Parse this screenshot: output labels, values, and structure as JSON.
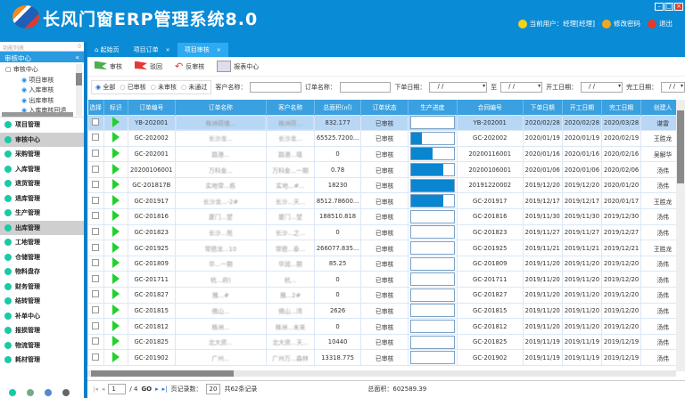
{
  "app": {
    "title": "长风门窗ERP管理系统8.0",
    "user": "当前用户：经理[经理]",
    "change_password": "修改密码",
    "logout": "退出"
  },
  "sidebar": {
    "search_placeholder": "功能列表",
    "search_count": "0",
    "section": "审核中心",
    "tree_root": "审核中心",
    "tree_items": [
      "项目审核",
      "入库审核",
      "出库审核",
      "入库审核回退"
    ],
    "menu": [
      "项目管理",
      "审核中心",
      "采购管理",
      "入库管理",
      "退货管理",
      "退库管理",
      "生产管理",
      "出库管理",
      "工地管理",
      "仓储管理",
      "物料盘存",
      "财务管理",
      "结转管理",
      "补单中心",
      "报损管理",
      "物流管理",
      "耗材管理"
    ],
    "selected": [
      "审核中心",
      "出库管理"
    ]
  },
  "tabs": [
    {
      "label": "起始页"
    },
    {
      "label": "项目订单"
    },
    {
      "label": "项目审核",
      "active": true
    }
  ],
  "toolbar": {
    "approve": "审核",
    "reject": "驳回",
    "unapprove": "反审核",
    "report": "报表中心"
  },
  "filter": {
    "radios": [
      "全部",
      "已审核",
      "未审核",
      "未通过"
    ],
    "selected": "全部",
    "customer_label": "客户名称：",
    "order_label": "订单名称：",
    "order_date_label": "下单日期：",
    "to_label": "至",
    "start_date_label": "开工日期：",
    "finish_date_label": "完工日期：",
    "date_placeholder": "/ /"
  },
  "table": {
    "columns": [
      "选择",
      "标识",
      "订单编号",
      "订单名称",
      "客户名称",
      "总面积(㎡)",
      "订单状态",
      "生产进度",
      "合同编号",
      "下单日期",
      "开工日期",
      "完工日期",
      "创建人"
    ],
    "rows": [
      [
        "YB-202001",
        "株洲荷塘...",
        "株洲荷...",
        "832.177",
        "已审核",
        0,
        "YB-202001",
        "2020/02/28",
        "2020/02/28",
        "2020/03/28",
        "谌雷"
      ],
      [
        "GC-202002",
        "长沙龙...",
        "长沙龙...",
        "65525.7200...",
        "已审核",
        0.25,
        "GC-202002",
        "2020/01/19",
        "2020/01/19",
        "2020/02/19",
        "王胜龙"
      ],
      [
        "GC-202001",
        "路港...",
        "路港...墙",
        "0",
        "已审核",
        0.5,
        "20200116001",
        "2020/01/16",
        "2020/01/16",
        "2020/02/16",
        "吴解华"
      ],
      [
        "20200106001",
        "万科金...",
        "万科金...一期",
        "0.78",
        "已审核",
        0.75,
        "20200106001",
        "2020/01/06",
        "2020/01/06",
        "2020/02/06",
        "汤伟"
      ],
      [
        "GC-201817B",
        "实地常...栋",
        "实地...#...",
        "18230",
        "已审核",
        1,
        "20191220002",
        "2019/12/20",
        "2019/12/20",
        "2020/01/20",
        "汤伟"
      ],
      [
        "GC-201917",
        "长沙龙...-2#",
        "长沙...天...",
        "8512.78600...",
        "已审核",
        0.75,
        "GC-201917",
        "2019/12/17",
        "2019/12/17",
        "2020/01/17",
        "王胜龙"
      ],
      [
        "GC-201816",
        "厦门...望",
        "厦门...望",
        "188510.818",
        "已审核",
        0,
        "GC-201816",
        "2019/11/30",
        "2019/11/30",
        "2019/12/30",
        "汤伟"
      ],
      [
        "GC-201823",
        "长沙...苑",
        "长沙...之...",
        "0",
        "已审核",
        0,
        "GC-201823",
        "2019/11/27",
        "2019/11/27",
        "2019/12/27",
        "汤伟"
      ],
      [
        "GC-201925",
        "常德龙...10",
        "常德...泰...",
        "266077.835...",
        "已审核",
        0,
        "GC-201925",
        "2019/11/21",
        "2019/11/21",
        "2019/12/21",
        "王胜龙"
      ],
      [
        "GC-201809",
        "华...一期",
        "华润...期",
        "85.25",
        "已审核",
        0,
        "GC-201809",
        "2019/11/20",
        "2019/11/20",
        "2019/12/20",
        "汤伟"
      ],
      [
        "GC-201711",
        "杭...府)",
        "杭...",
        "0",
        "已审核",
        0,
        "GC-201711",
        "2019/11/20",
        "2019/11/20",
        "2019/12/20",
        "汤伟"
      ],
      [
        "GC-201827",
        "雅...#",
        "雅...2#",
        "0",
        "已审核",
        0,
        "GC-201827",
        "2019/11/20",
        "2019/11/20",
        "2019/12/20",
        "汤伟"
      ],
      [
        "GC-201815",
        "佛山...",
        "佛山...湾",
        "2626",
        "已审核",
        0,
        "GC-201815",
        "2019/11/20",
        "2019/11/20",
        "2019/12/20",
        "汤伟"
      ],
      [
        "GC-201812",
        "株洲...",
        "株洲...未来",
        "0",
        "已审核",
        0,
        "GC-201812",
        "2019/11/20",
        "2019/11/20",
        "2019/12/20",
        "汤伟"
      ],
      [
        "GC-201825",
        "北大资...",
        "北大资...天...",
        "10440",
        "已审核",
        0,
        "GC-201825",
        "2019/11/19",
        "2019/11/19",
        "2019/12/19",
        "汤伟"
      ],
      [
        "GC-201902",
        "广州...",
        "广州万...森林",
        "13318.775",
        "已审核",
        0,
        "GC-201902",
        "2019/11/19",
        "2019/11/19",
        "2019/12/19",
        "汤伟"
      ]
    ]
  },
  "pager": {
    "page": "1",
    "total_pages": "/ 4",
    "go": "GO",
    "page_size_label": "页记录数：",
    "page_size": "20",
    "total": "共62条记录",
    "total_area": "总面积：602589.39"
  },
  "colors": {
    "header": "#0a8bd6",
    "table_header": "#3aa0df",
    "progress": "#0a86d0",
    "flag": "#22d12c"
  }
}
